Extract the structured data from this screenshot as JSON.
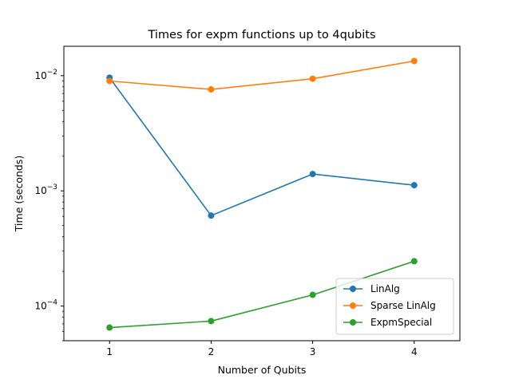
{
  "chart_data": {
    "type": "line",
    "title": "Times for expm functions up to 4qubits",
    "xlabel": "Number of Qubits",
    "ylabel": "Time (seconds)",
    "x": [
      1,
      2,
      3,
      4
    ],
    "xticks": [
      "1",
      "2",
      "3",
      "4"
    ],
    "yscale": "log",
    "ylim": [
      5e-05,
      0.018
    ],
    "yticks": [
      {
        "value": 0.01,
        "base": "10",
        "exp": "−2"
      },
      {
        "value": 0.001,
        "base": "10",
        "exp": "−3"
      },
      {
        "value": 0.0001,
        "base": "10",
        "exp": "−4"
      }
    ],
    "grid": false,
    "legend_position": "lower-right",
    "series": [
      {
        "name": "LinAlg",
        "color": "#1f77b4",
        "values": [
          0.0096,
          0.00061,
          0.0014,
          0.00112
        ]
      },
      {
        "name": "Sparse LinAlg",
        "color": "#ff7f0e",
        "values": [
          0.009,
          0.0076,
          0.0094,
          0.0134
        ]
      },
      {
        "name": "ExpmSpecial",
        "color": "#2ca02c",
        "values": [
          6.5e-05,
          7.4e-05,
          0.000125,
          0.000245
        ]
      }
    ]
  }
}
